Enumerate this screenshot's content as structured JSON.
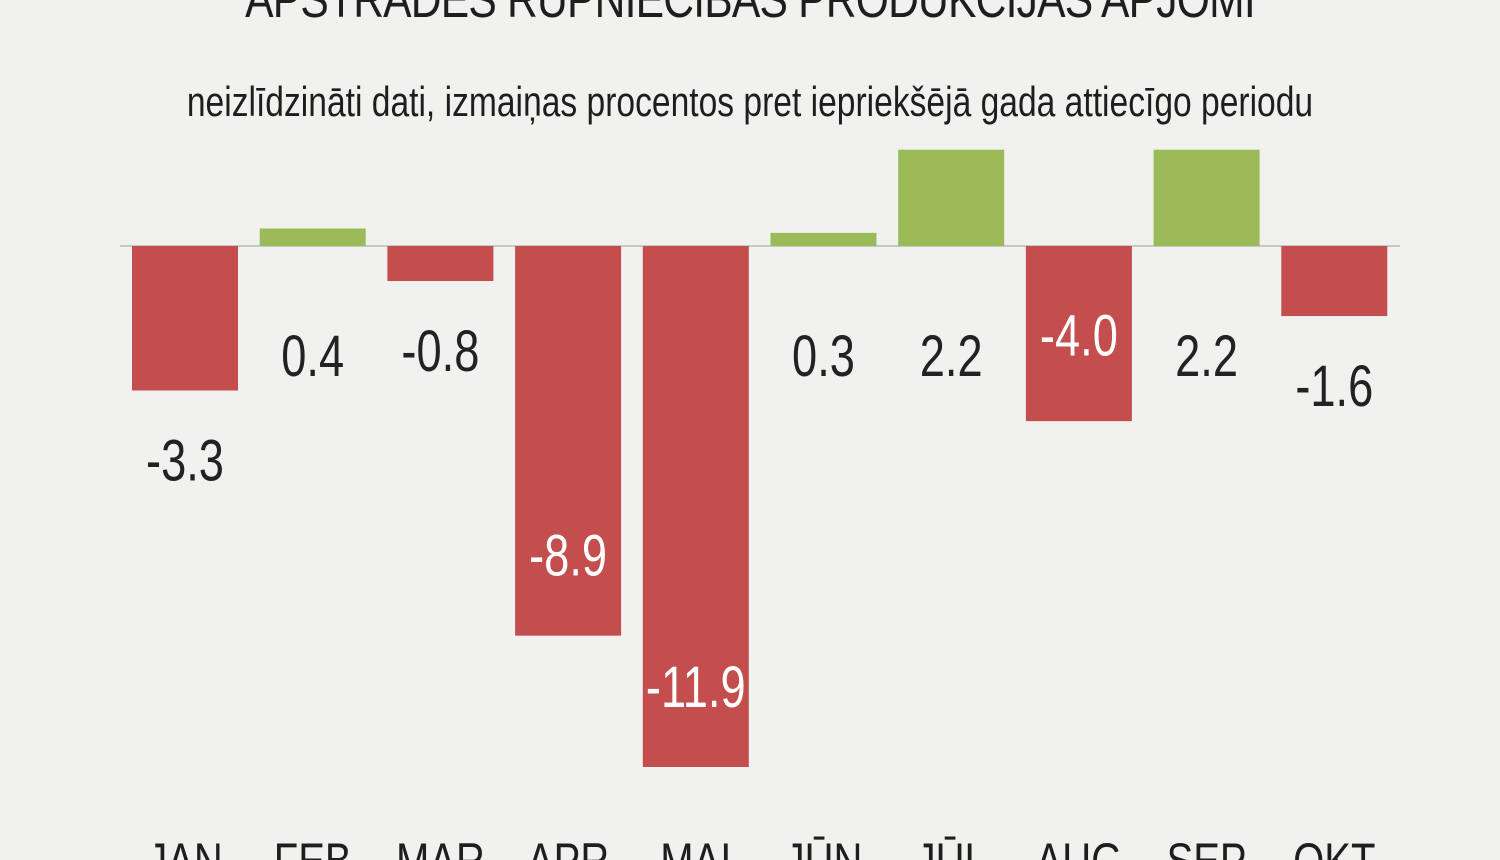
{
  "chart_data": {
    "type": "bar",
    "title": "APSTRĀDES RŪPNIECĪBAS PRODUKCIJAS APJOMI",
    "subtitle": "neizlīdzināti dati, izmaiņas procentos pret iepriekšējā gada attiecīgo periodu",
    "categories": [
      "JAN",
      "FEB",
      "MAR",
      "APR",
      "MAI",
      "JŪN",
      "JŪL",
      "AUG",
      "SEP",
      "OKT"
    ],
    "values": [
      -3.3,
      0.4,
      -0.8,
      -8.9,
      -11.9,
      0.3,
      2.2,
      -4.0,
      2.2,
      -1.6
    ],
    "value_labels": [
      "-3.3",
      "0.4",
      "-0.8",
      "-8.9",
      "-11.9",
      "0.3",
      "2.2",
      "-4.0",
      "2.2",
      "-1.6"
    ],
    "xlabel": "",
    "ylabel": "",
    "ylim": [
      -11.9,
      2.2
    ],
    "grid": false,
    "legend": "none",
    "colors": {
      "negative": "#c44e4e",
      "positive": "#9bbb59",
      "axis": "#c8c8c8",
      "label_dark": "#222222",
      "label_light": "#ffffff"
    }
  }
}
